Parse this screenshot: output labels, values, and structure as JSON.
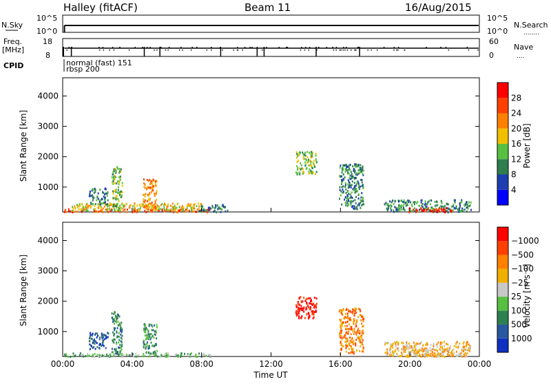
{
  "header": {
    "station": "Halley (fitACF)",
    "beam": "Beam 11",
    "date": "16/Aug/2015"
  },
  "panels": {
    "nsky": {
      "left_label": "N.Sky",
      "left_ticks": [
        "10^5",
        "10^0"
      ],
      "right_ticks": [
        "10^5",
        "10^0"
      ],
      "right_label": "N.Search",
      "right_label_dots": "........"
    },
    "freq": {
      "left_label_1": "Freq.",
      "left_label_2": "[MHz]",
      "left_ticks": [
        "18",
        "8"
      ],
      "right_ticks": [
        "60",
        "0"
      ],
      "right_label": "Nave",
      "right_label_dots": "...."
    },
    "cpid": {
      "label": "CPID",
      "text_1": "normal (fast) 151",
      "text_2": "rbsp 200"
    }
  },
  "chart_data": [
    {
      "type": "heatmap",
      "name": "power",
      "ylabel": "Slant Range [km]",
      "yticks": [
        1000,
        2000,
        3000,
        4000
      ],
      "ylim": [
        180,
        4600
      ],
      "xlim": [
        0,
        24
      ],
      "colorbar": {
        "label": "Power [dB]",
        "ticks": [
          "4",
          "8",
          "12",
          "16",
          "20",
          "24",
          "28"
        ],
        "colors": [
          "#0000ff",
          "#1f3fb0",
          "#2e7e4e",
          "#58c040",
          "#f0c000",
          "#ff8000",
          "#ff4000",
          "#ff0000"
        ]
      },
      "regions": [
        {
          "t0": 0.05,
          "t1": 8.5,
          "r0": 200,
          "r1": 310,
          "level": 6
        },
        {
          "t0": 0.5,
          "t1": 8.0,
          "r0": 250,
          "r1": 500,
          "level": 4
        },
        {
          "t0": 1.5,
          "t1": 2.6,
          "r0": 450,
          "r1": 1000,
          "level": 2
        },
        {
          "t0": 2.8,
          "t1": 3.4,
          "r0": 250,
          "r1": 1700,
          "level": 3
        },
        {
          "t0": 4.6,
          "t1": 5.4,
          "r0": 250,
          "r1": 1300,
          "level": 5
        },
        {
          "t0": 7.8,
          "t1": 9.5,
          "r0": 200,
          "r1": 450,
          "level": 2
        },
        {
          "t0": 13.4,
          "t1": 14.6,
          "r0": 1450,
          "r1": 2200,
          "level": 3
        },
        {
          "t0": 15.9,
          "t1": 17.3,
          "r0": 300,
          "r1": 1800,
          "level": 2
        },
        {
          "t0": 18.5,
          "t1": 23.5,
          "r0": 200,
          "r1": 600,
          "level": 2
        },
        {
          "t0": 19.8,
          "t1": 22.5,
          "r0": 200,
          "r1": 350,
          "level": 7
        }
      ]
    },
    {
      "type": "heatmap",
      "name": "velocity",
      "ylabel": "Slant Range [km]",
      "yticks": [
        1000,
        2000,
        3000,
        4000
      ],
      "ylim": [
        180,
        4600
      ],
      "xlim": [
        0,
        24
      ],
      "xlabel": "Time UT",
      "xticks": [
        "00:00",
        "04:00",
        "08:00",
        "12:00",
        "16:00",
        "20:00",
        "00:00"
      ],
      "colorbar": {
        "label": "Velocity [m s⁻¹]",
        "ticks": [
          "1000",
          "500",
          "100",
          "25",
          "−25",
          "−100",
          "−500",
          "−1000"
        ],
        "colors": [
          "#1030c0",
          "#2858a0",
          "#2e8050",
          "#58c040",
          "#c8c8c8",
          "#f0b000",
          "#ff8000",
          "#ff4000",
          "#ff0000"
        ]
      },
      "regions": [
        {
          "t0": 0.05,
          "t1": 8.5,
          "r0": 200,
          "r1": 320,
          "level": 3
        },
        {
          "t0": 1.5,
          "t1": 2.6,
          "r0": 450,
          "r1": 1000,
          "level": 1
        },
        {
          "t0": 2.8,
          "t1": 3.4,
          "r0": 250,
          "r1": 1700,
          "level": 2
        },
        {
          "t0": 4.6,
          "t1": 5.4,
          "r0": 250,
          "r1": 1300,
          "level": 2
        },
        {
          "t0": 13.4,
          "t1": 14.6,
          "r0": 1450,
          "r1": 2200,
          "level": 8
        },
        {
          "t0": 15.9,
          "t1": 17.3,
          "r0": 300,
          "r1": 1800,
          "level": 6
        },
        {
          "t0": 18.5,
          "t1": 23.5,
          "r0": 200,
          "r1": 700,
          "level": 5
        },
        {
          "t0": 19.8,
          "t1": 22.5,
          "r0": 200,
          "r1": 450,
          "level": 5
        }
      ]
    }
  ]
}
